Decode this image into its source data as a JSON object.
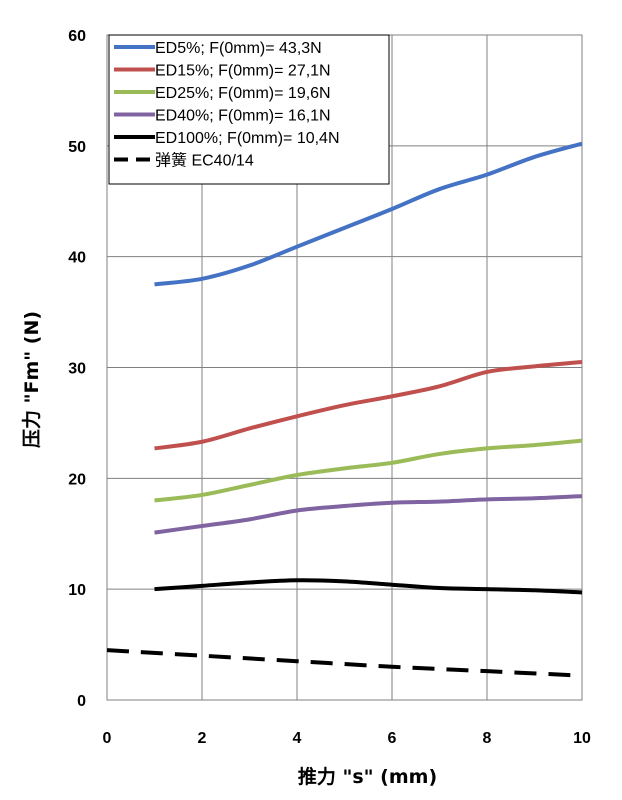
{
  "chart_data": {
    "type": "line",
    "xlabel": "推力  \"s\" (mm)",
    "ylabel": "压力 \"Fm\"  (N)",
    "xlim": [
      0,
      10
    ],
    "ylim": [
      0,
      60
    ],
    "x_ticks": [
      "0",
      "2",
      "4",
      "6",
      "8",
      "10"
    ],
    "y_ticks": [
      "0",
      "10",
      "20",
      "30",
      "40",
      "50",
      "60"
    ],
    "grid": true,
    "legend_position": "top-left",
    "series": [
      {
        "name": "ED5%; F(0mm)= 43,3N",
        "color": "#4472C4",
        "dash": "solid",
        "x": [
          1,
          2,
          3,
          4,
          5,
          6,
          7,
          8,
          9,
          10
        ],
        "y": [
          37.5,
          38.0,
          39.2,
          40.9,
          42.6,
          44.3,
          46.1,
          47.4,
          49.0,
          50.2
        ]
      },
      {
        "name": "ED15%; F(0mm)= 27,1N",
        "color": "#C0504D",
        "dash": "solid",
        "x": [
          1,
          2,
          3,
          4,
          5,
          6,
          7,
          8,
          9,
          10
        ],
        "y": [
          22.7,
          23.3,
          24.5,
          25.6,
          26.6,
          27.4,
          28.3,
          29.6,
          30.1,
          30.5
        ]
      },
      {
        "name": "ED25%; F(0mm)= 19,6N",
        "color": "#9BBB59",
        "dash": "solid",
        "x": [
          1,
          2,
          3,
          4,
          5,
          6,
          7,
          8,
          9,
          10
        ],
        "y": [
          18.0,
          18.5,
          19.4,
          20.3,
          20.9,
          21.4,
          22.2,
          22.7,
          23.0,
          23.4
        ]
      },
      {
        "name": "ED40%; F(0mm)= 16,1N",
        "color": "#8064A2",
        "dash": "solid",
        "x": [
          1,
          2,
          3,
          4,
          5,
          6,
          7,
          8,
          9,
          10
        ],
        "y": [
          15.1,
          15.7,
          16.3,
          17.1,
          17.5,
          17.8,
          17.9,
          18.1,
          18.2,
          18.4
        ]
      },
      {
        "name": "ED100%; F(0mm)= 10,4N",
        "color": "#000000",
        "dash": "solid",
        "x": [
          1,
          2,
          3,
          4,
          5,
          6,
          7,
          8,
          9,
          10
        ],
        "y": [
          10.0,
          10.3,
          10.6,
          10.8,
          10.7,
          10.4,
          10.1,
          10.0,
          9.9,
          9.7
        ]
      },
      {
        "name": "弹簧      EC40/14",
        "color": "#000000",
        "dash": "dashed",
        "x": [
          0,
          2,
          4,
          6,
          8,
          10
        ],
        "y": [
          4.5,
          4.0,
          3.5,
          3.0,
          2.6,
          2.2
        ]
      }
    ]
  }
}
